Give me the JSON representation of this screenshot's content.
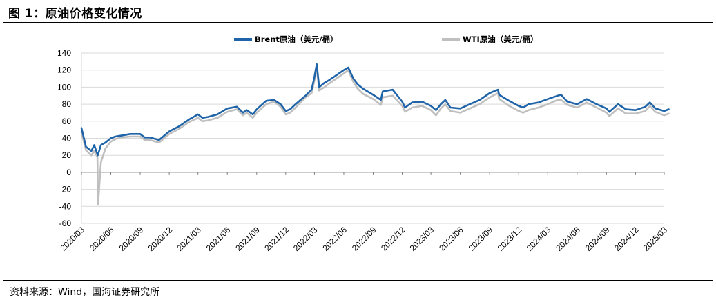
{
  "figure": {
    "title": "图 1：原油价格变化情况",
    "source": "资料来源：Wind，国海证券研究所"
  },
  "colors": {
    "brent": "#1F64A8",
    "wti": "#BFBFBF",
    "grid": "#D9D9D9"
  },
  "chart_data": {
    "type": "line",
    "title": "",
    "xlabel": "",
    "ylabel": "",
    "ylim": [
      -60,
      140
    ],
    "yticks": [
      -60,
      -40,
      -20,
      0,
      20,
      40,
      60,
      80,
      100,
      120,
      140
    ],
    "grid": true,
    "legend_position": "top-center",
    "xlim": [
      "2020-03",
      "2025-03"
    ],
    "xticks": [
      "2020/03",
      "2020/06",
      "2020/09",
      "2020/12",
      "2021/03",
      "2021/06",
      "2021/09",
      "2021/12",
      "2022/03",
      "2022/06",
      "2022/09",
      "2022/12",
      "2023/03",
      "2023/06",
      "2023/09",
      "2023/12",
      "2024/03",
      "2024/06",
      "2024/09",
      "2024/12",
      "2025/03"
    ],
    "series": [
      {
        "name": "Brent原油（美元/桶）",
        "x": [
          "2020-03-01",
          "2020-03-15",
          "2020-04-01",
          "2020-04-10",
          "2020-04-21",
          "2020-05-01",
          "2020-05-15",
          "2020-06-01",
          "2020-06-15",
          "2020-07-01",
          "2020-08-01",
          "2020-09-01",
          "2020-09-15",
          "2020-10-01",
          "2020-10-30",
          "2020-11-15",
          "2020-12-01",
          "2021-01-01",
          "2021-02-01",
          "2021-03-01",
          "2021-03-15",
          "2021-04-01",
          "2021-05-01",
          "2021-06-01",
          "2021-07-01",
          "2021-07-20",
          "2021-08-01",
          "2021-08-20",
          "2021-09-01",
          "2021-10-01",
          "2021-10-25",
          "2021-11-15",
          "2021-12-01",
          "2021-12-15",
          "2022-01-01",
          "2022-02-01",
          "2022-02-20",
          "2022-03-01",
          "2022-03-08",
          "2022-03-16",
          "2022-04-01",
          "2022-04-15",
          "2022-05-01",
          "2022-06-01",
          "2022-06-15",
          "2022-07-01",
          "2022-07-15",
          "2022-08-01",
          "2022-09-01",
          "2022-09-25",
          "2022-10-01",
          "2022-11-01",
          "2022-12-01",
          "2022-12-10",
          "2023-01-01",
          "2023-02-01",
          "2023-03-01",
          "2023-03-17",
          "2023-04-01",
          "2023-04-15",
          "2023-05-01",
          "2023-06-01",
          "2023-07-01",
          "2023-08-01",
          "2023-09-01",
          "2023-09-27",
          "2023-10-01",
          "2023-11-01",
          "2023-12-01",
          "2023-12-15",
          "2024-01-01",
          "2024-02-01",
          "2024-03-01",
          "2024-04-01",
          "2024-04-12",
          "2024-05-01",
          "2024-06-01",
          "2024-07-01",
          "2024-08-01",
          "2024-09-01",
          "2024-09-10",
          "2024-10-01",
          "2024-10-07",
          "2024-11-01",
          "2024-12-01",
          "2025-01-01",
          "2025-01-15",
          "2025-02-01",
          "2025-03-01",
          "2025-03-15"
        ],
        "values": [
          52,
          30,
          25,
          32,
          20,
          32,
          35,
          40,
          42,
          43,
          45,
          45,
          41,
          41,
          38,
          43,
          48,
          54,
          62,
          68,
          64,
          65,
          68,
          75,
          77,
          70,
          73,
          68,
          74,
          84,
          85,
          80,
          72,
          74,
          80,
          90,
          97,
          112,
          127,
          100,
          105,
          108,
          112,
          120,
          123,
          110,
          103,
          98,
          91,
          85,
          95,
          97,
          83,
          76,
          82,
          83,
          78,
          73,
          80,
          85,
          76,
          75,
          80,
          85,
          93,
          97,
          91,
          84,
          78,
          76,
          80,
          82,
          86,
          90,
          91,
          83,
          80,
          86,
          80,
          75,
          71,
          78,
          80,
          74,
          73,
          77,
          82,
          75,
          72,
          74
        ]
      },
      {
        "name": "WTI原油（美元/桶）",
        "x": [
          "2020-03-01",
          "2020-03-15",
          "2020-04-01",
          "2020-04-10",
          "2020-04-20",
          "2020-04-22",
          "2020-05-01",
          "2020-05-15",
          "2020-06-01",
          "2020-06-15",
          "2020-07-01",
          "2020-08-01",
          "2020-09-01",
          "2020-09-15",
          "2020-10-01",
          "2020-10-30",
          "2020-11-15",
          "2020-12-01",
          "2021-01-01",
          "2021-02-01",
          "2021-03-01",
          "2021-03-15",
          "2021-04-01",
          "2021-05-01",
          "2021-06-01",
          "2021-07-01",
          "2021-07-20",
          "2021-08-01",
          "2021-08-20",
          "2021-09-01",
          "2021-10-01",
          "2021-10-25",
          "2021-11-15",
          "2021-12-01",
          "2021-12-15",
          "2022-01-01",
          "2022-02-01",
          "2022-02-20",
          "2022-03-01",
          "2022-03-08",
          "2022-03-16",
          "2022-04-01",
          "2022-04-15",
          "2022-05-01",
          "2022-06-01",
          "2022-06-15",
          "2022-07-01",
          "2022-07-15",
          "2022-08-01",
          "2022-09-01",
          "2022-09-25",
          "2022-10-01",
          "2022-11-01",
          "2022-12-01",
          "2022-12-10",
          "2023-01-01",
          "2023-02-01",
          "2023-03-01",
          "2023-03-17",
          "2023-04-01",
          "2023-04-15",
          "2023-05-01",
          "2023-06-01",
          "2023-07-01",
          "2023-08-01",
          "2023-09-01",
          "2023-09-27",
          "2023-10-01",
          "2023-11-01",
          "2023-12-01",
          "2023-12-15",
          "2024-01-01",
          "2024-02-01",
          "2024-03-01",
          "2024-04-01",
          "2024-04-12",
          "2024-05-01",
          "2024-06-01",
          "2024-07-01",
          "2024-08-01",
          "2024-09-01",
          "2024-09-10",
          "2024-10-01",
          "2024-10-07",
          "2024-11-01",
          "2024-12-01",
          "2025-01-01",
          "2025-01-15",
          "2025-02-01",
          "2025-03-01",
          "2025-03-15"
        ],
        "values": [
          47,
          26,
          20,
          25,
          18,
          -38,
          12,
          28,
          36,
          39,
          41,
          42,
          42,
          38,
          38,
          35,
          40,
          45,
          51,
          59,
          64,
          60,
          61,
          64,
          71,
          74,
          67,
          70,
          64,
          70,
          80,
          83,
          77,
          68,
          70,
          76,
          88,
          93,
          108,
          123,
          96,
          100,
          104,
          108,
          116,
          120,
          106,
          98,
          92,
          86,
          79,
          88,
          90,
          78,
          71,
          76,
          78,
          73,
          67,
          75,
          80,
          72,
          70,
          75,
          80,
          88,
          93,
          86,
          78,
          72,
          70,
          73,
          76,
          80,
          85,
          85,
          79,
          76,
          82,
          76,
          70,
          66,
          73,
          75,
          69,
          69,
          72,
          78,
          71,
          67,
          69
        ]
      }
    ]
  }
}
